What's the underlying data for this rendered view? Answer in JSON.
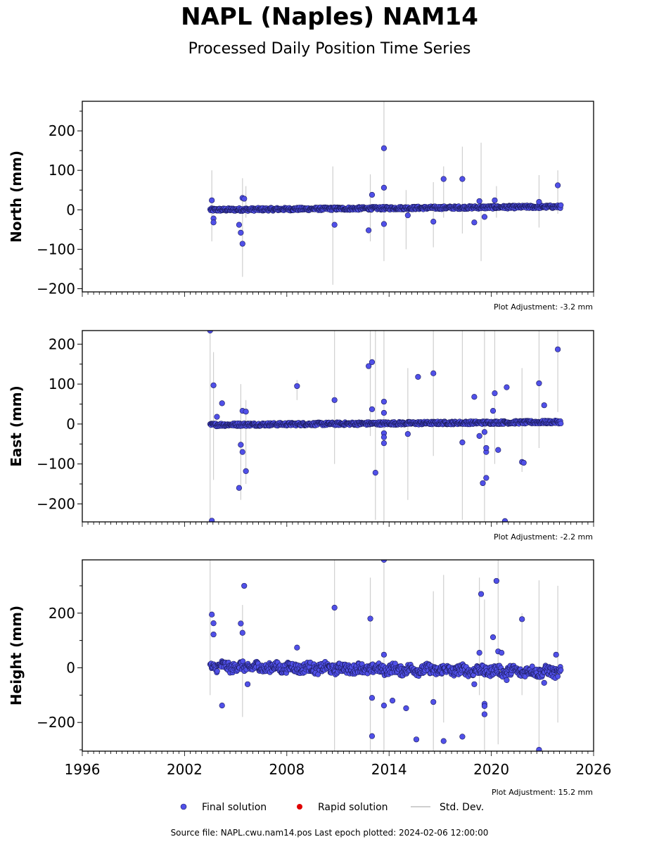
{
  "header": {
    "title": "NAPL (Naples) NAM14",
    "subtitle": "Processed Daily Position Time Series"
  },
  "legend": {
    "final": "Final solution",
    "rapid": "Rapid solution",
    "std": "Std. Dev."
  },
  "footer": {
    "text": "Source file: NAPL.cwu.nam14.pos  Last epoch plotted: 2024-02-06 12:00:00"
  },
  "colors": {
    "final_fill": "#5050e8",
    "final_edge": "#1a1a5a",
    "rapid": "#e00000",
    "std": "#cfcfcf"
  },
  "chart_data": [
    {
      "type": "scatter",
      "name": "north",
      "ylabel": "North (mm)",
      "adjustment": "Plot Adjustment: -3.2 mm",
      "xlim": [
        1996,
        2026
      ],
      "ylim": [
        -208,
        275
      ],
      "yticks": [
        -200,
        -100,
        0,
        100,
        200
      ],
      "band": {
        "start": 2003.5,
        "end": 2024.1,
        "y0": 0,
        "y1": 8,
        "spread": 4
      },
      "outliers": [
        [
          2003.6,
          24
        ],
        [
          2003.7,
          -22
        ],
        [
          2003.7,
          -32
        ],
        [
          2005.4,
          30
        ],
        [
          2005.5,
          28
        ],
        [
          2005.2,
          -38
        ],
        [
          2005.3,
          -58
        ],
        [
          2005.4,
          -86
        ],
        [
          2010.8,
          -38
        ],
        [
          2012.8,
          -52
        ],
        [
          2013.0,
          38
        ],
        [
          2013.7,
          156
        ],
        [
          2013.7,
          56
        ],
        [
          2013.7,
          -36
        ],
        [
          2015.1,
          -14
        ],
        [
          2016.6,
          -30
        ],
        [
          2017.2,
          78
        ],
        [
          2018.3,
          78
        ],
        [
          2019.0,
          -32
        ],
        [
          2019.3,
          22
        ],
        [
          2019.6,
          -18
        ],
        [
          2020.2,
          24
        ],
        [
          2022.8,
          20
        ],
        [
          2023.9,
          62
        ]
      ],
      "errorbars": [
        [
          2003.6,
          -80,
          100
        ],
        [
          2005.4,
          -170,
          80
        ],
        [
          2005.6,
          -20,
          60
        ],
        [
          2010.7,
          -190,
          110
        ],
        [
          2012.9,
          -80,
          90
        ],
        [
          2013.7,
          -130,
          275
        ],
        [
          2015.0,
          -100,
          50
        ],
        [
          2016.6,
          -95,
          70
        ],
        [
          2017.2,
          -20,
          110
        ],
        [
          2018.3,
          -60,
          160
        ],
        [
          2019.4,
          -130,
          170
        ],
        [
          2020.3,
          -20,
          60
        ],
        [
          2022.8,
          -45,
          88
        ],
        [
          2023.9,
          -10,
          100
        ]
      ]
    },
    {
      "type": "scatter",
      "name": "east",
      "ylabel": "East (mm)",
      "adjustment": "Plot Adjustment: -2.2 mm",
      "xlim": [
        1996,
        2026
      ],
      "ylim": [
        -245,
        234
      ],
      "yticks": [
        -200,
        -100,
        0,
        100,
        200
      ],
      "band": {
        "start": 2003.5,
        "end": 2024.1,
        "y0": -2,
        "y1": 5,
        "spread": 4
      },
      "outliers": [
        [
          2003.5,
          234
        ],
        [
          2003.7,
          97
        ],
        [
          2003.6,
          -242
        ],
        [
          2003.9,
          18
        ],
        [
          2004.2,
          52
        ],
        [
          2005.3,
          -52
        ],
        [
          2005.4,
          33
        ],
        [
          2005.6,
          31
        ],
        [
          2005.4,
          -70
        ],
        [
          2005.6,
          -118
        ],
        [
          2005.2,
          -160
        ],
        [
          2008.6,
          95
        ],
        [
          2010.8,
          60
        ],
        [
          2012.8,
          145
        ],
        [
          2013.0,
          155
        ],
        [
          2013.0,
          37
        ],
        [
          2013.2,
          -122
        ],
        [
          2013.7,
          56
        ],
        [
          2013.7,
          28
        ],
        [
          2013.7,
          -23
        ],
        [
          2013.7,
          -33
        ],
        [
          2013.7,
          -48
        ],
        [
          2015.1,
          -25
        ],
        [
          2015.7,
          118
        ],
        [
          2016.6,
          127
        ],
        [
          2018.3,
          -46
        ],
        [
          2019.0,
          68
        ],
        [
          2019.3,
          -30
        ],
        [
          2019.5,
          -148
        ],
        [
          2019.7,
          -135
        ],
        [
          2019.7,
          -70
        ],
        [
          2019.7,
          -60
        ],
        [
          2019.6,
          -20
        ],
        [
          2020.1,
          33
        ],
        [
          2020.2,
          77
        ],
        [
          2020.4,
          -65
        ],
        [
          2020.9,
          92
        ],
        [
          2020.8,
          -243
        ],
        [
          2021.8,
          -95
        ],
        [
          2021.9,
          -97
        ],
        [
          2022.8,
          102
        ],
        [
          2023.1,
          47
        ],
        [
          2023.9,
          187
        ]
      ],
      "errorbars": [
        [
          2003.5,
          -245,
          234
        ],
        [
          2003.7,
          -140,
          180
        ],
        [
          2005.3,
          -190,
          100
        ],
        [
          2005.6,
          -150,
          60
        ],
        [
          2008.6,
          60,
          110
        ],
        [
          2010.8,
          -100,
          234
        ],
        [
          2012.9,
          -30,
          234
        ],
        [
          2013.2,
          -240,
          234
        ],
        [
          2013.7,
          -245,
          234
        ],
        [
          2015.1,
          -190,
          140
        ],
        [
          2016.6,
          -80,
          234
        ],
        [
          2018.3,
          -240,
          234
        ],
        [
          2019.6,
          -245,
          234
        ],
        [
          2020.2,
          -100,
          234
        ],
        [
          2021.8,
          -120,
          140
        ],
        [
          2022.8,
          -60,
          234
        ],
        [
          2023.9,
          30,
          234
        ]
      ]
    },
    {
      "type": "scatter",
      "name": "height",
      "ylabel": "Height (mm)",
      "adjustment": "Plot Adjustment: 15.2 mm",
      "xlim": [
        1996,
        2026
      ],
      "ylim": [
        -305,
        395
      ],
      "yticks": [
        -200,
        0,
        200
      ],
      "xticks": [
        1996,
        2002,
        2008,
        2014,
        2020,
        2026
      ],
      "band": {
        "start": 2003.5,
        "end": 2024.1,
        "y0": 5,
        "y1": -15,
        "spread": 18
      },
      "outliers": [
        [
          2003.6,
          195
        ],
        [
          2003.7,
          163
        ],
        [
          2003.7,
          122
        ],
        [
          2004.2,
          -138
        ],
        [
          2005.3,
          162
        ],
        [
          2005.4,
          128
        ],
        [
          2005.5,
          300
        ],
        [
          2005.7,
          -60
        ],
        [
          2008.6,
          74
        ],
        [
          2010.8,
          220
        ],
        [
          2012.9,
          180
        ],
        [
          2013.0,
          -110
        ],
        [
          2013.0,
          -250
        ],
        [
          2013.7,
          395
        ],
        [
          2013.7,
          48
        ],
        [
          2013.7,
          -138
        ],
        [
          2014.2,
          -120
        ],
        [
          2015.0,
          -148
        ],
        [
          2015.6,
          -262
        ],
        [
          2016.6,
          -125
        ],
        [
          2017.2,
          -268
        ],
        [
          2018.3,
          -252
        ],
        [
          2019.0,
          -60
        ],
        [
          2019.3,
          55
        ],
        [
          2019.4,
          270
        ],
        [
          2019.6,
          -132
        ],
        [
          2019.6,
          -140
        ],
        [
          2019.6,
          -170
        ],
        [
          2020.1,
          112
        ],
        [
          2020.3,
          318
        ],
        [
          2020.4,
          60
        ],
        [
          2020.6,
          55
        ],
        [
          2020.9,
          -45
        ],
        [
          2021.8,
          178
        ],
        [
          2022.8,
          -300
        ],
        [
          2023.1,
          -55
        ],
        [
          2023.8,
          48
        ]
      ],
      "errorbars": [
        [
          2003.5,
          -100,
          395
        ],
        [
          2005.4,
          -180,
          230
        ],
        [
          2010.8,
          -305,
          395
        ],
        [
          2012.9,
          -305,
          330
        ],
        [
          2013.7,
          -305,
          395
        ],
        [
          2016.6,
          -305,
          280
        ],
        [
          2017.2,
          -200,
          340
        ],
        [
          2019.3,
          -100,
          330
        ],
        [
          2019.6,
          -305,
          250
        ],
        [
          2020.4,
          -280,
          395
        ],
        [
          2021.8,
          -100,
          200
        ],
        [
          2022.8,
          -305,
          320
        ],
        [
          2023.9,
          -200,
          300
        ]
      ]
    }
  ]
}
